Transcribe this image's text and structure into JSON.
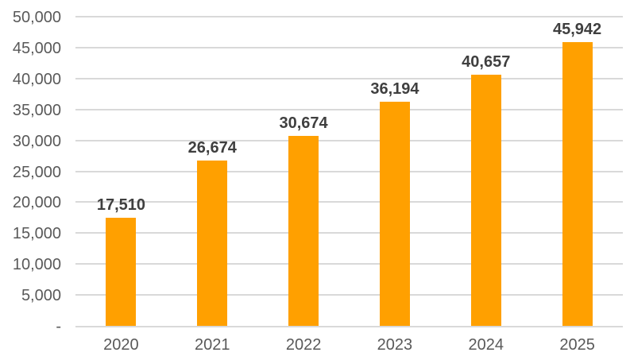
{
  "chart_style": {
    "bar_color": "#FFA000",
    "gridline_color": "#D9D9D9",
    "axis_line_color": "#D9D9D9",
    "axis_text_color": "#595959",
    "data_label_color": "#3F3F3F",
    "background_color": "#FFFFFF"
  },
  "chart_data": {
    "type": "bar",
    "title": "",
    "xlabel": "",
    "ylabel": "",
    "categories": [
      "2020",
      "2021",
      "2022",
      "2023",
      "2024",
      "2025"
    ],
    "values": [
      17510,
      26674,
      30674,
      36194,
      40657,
      45942
    ],
    "data_labels": [
      "17,510",
      "26,674",
      "30,674",
      "36,194",
      "40,657",
      "45,942"
    ],
    "y_axis_ticks": [
      {
        "value": 0,
        "label": "-"
      },
      {
        "value": 5000,
        "label": "5,000"
      },
      {
        "value": 10000,
        "label": "10,000"
      },
      {
        "value": 15000,
        "label": "15,000"
      },
      {
        "value": 20000,
        "label": "20,000"
      },
      {
        "value": 25000,
        "label": "25,000"
      },
      {
        "value": 30000,
        "label": "30,000"
      },
      {
        "value": 35000,
        "label": "35,000"
      },
      {
        "value": 40000,
        "label": "40,000"
      },
      {
        "value": 45000,
        "label": "45,000"
      },
      {
        "value": 50000,
        "label": "50,000"
      }
    ],
    "ylim": [
      0,
      50000
    ],
    "grid": true,
    "legend": false,
    "legend_position": "none",
    "data_labels_shown": true
  }
}
